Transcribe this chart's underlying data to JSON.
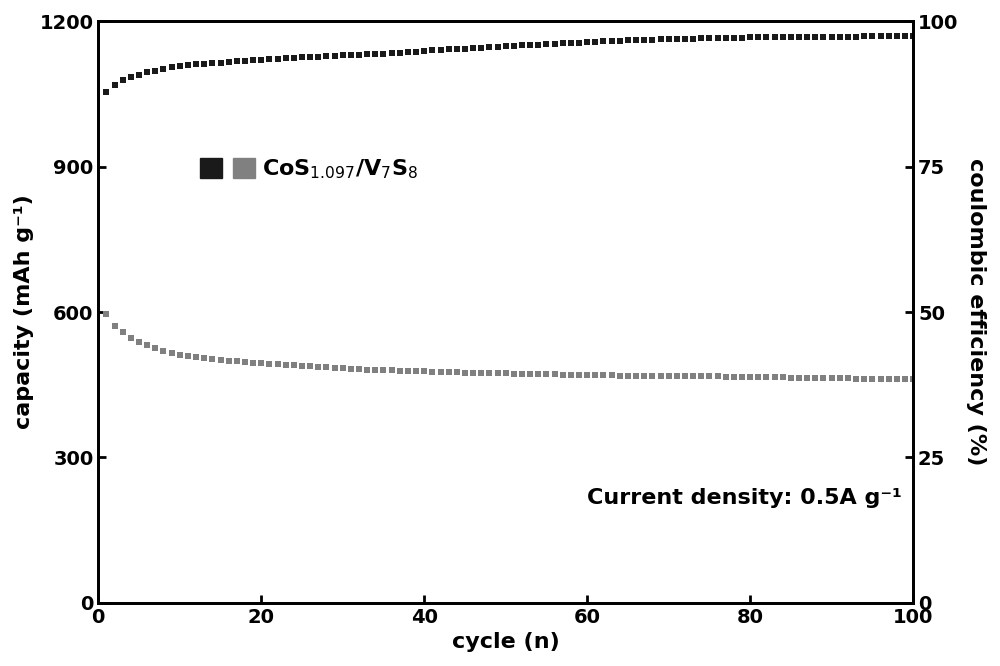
{
  "title": "",
  "xlabel": "cycle (n)",
  "ylabel_left": "capacity (mAh g⁻¹)",
  "ylabel_right": "coulombic efficiency (%)",
  "annotation": "Current density: 0.5A g⁻¹",
  "legend_label": "CoS$_{1.097}$/V$_7$S$_8$",
  "xlim": [
    0,
    100
  ],
  "ylim_left": [
    0,
    1200
  ],
  "ylim_right": [
    0,
    100
  ],
  "yticks_left": [
    0,
    300,
    600,
    900,
    1200
  ],
  "yticks_right": [
    0,
    25,
    50,
    75,
    100
  ],
  "xticks": [
    0,
    20,
    40,
    60,
    80,
    100
  ],
  "black_cycles": [
    1,
    2,
    3,
    4,
    5,
    6,
    7,
    8,
    9,
    10,
    11,
    12,
    13,
    14,
    15,
    16,
    17,
    18,
    19,
    20,
    21,
    22,
    23,
    24,
    25,
    26,
    27,
    28,
    29,
    30,
    31,
    32,
    33,
    34,
    35,
    36,
    37,
    38,
    39,
    40,
    41,
    42,
    43,
    44,
    45,
    46,
    47,
    48,
    49,
    50,
    51,
    52,
    53,
    54,
    55,
    56,
    57,
    58,
    59,
    60,
    61,
    62,
    63,
    64,
    65,
    66,
    67,
    68,
    69,
    70,
    71,
    72,
    73,
    74,
    75,
    76,
    77,
    78,
    79,
    80,
    81,
    82,
    83,
    84,
    85,
    86,
    87,
    88,
    89,
    90,
    91,
    92,
    93,
    94,
    95,
    96,
    97,
    98,
    99,
    100
  ],
  "black_values": [
    1055,
    1068,
    1078,
    1085,
    1090,
    1095,
    1098,
    1102,
    1105,
    1108,
    1110,
    1112,
    1113,
    1114,
    1115,
    1117,
    1118,
    1119,
    1120,
    1120,
    1122,
    1123,
    1124,
    1125,
    1126,
    1127,
    1127,
    1128,
    1129,
    1130,
    1130,
    1131,
    1132,
    1132,
    1133,
    1134,
    1135,
    1136,
    1137,
    1138,
    1140,
    1141,
    1142,
    1143,
    1144,
    1145,
    1146,
    1147,
    1148,
    1149,
    1150,
    1151,
    1152,
    1152,
    1153,
    1154,
    1155,
    1156,
    1156,
    1157,
    1158,
    1159,
    1160,
    1160,
    1161,
    1161,
    1162,
    1162,
    1163,
    1163,
    1163,
    1164,
    1164,
    1165,
    1165,
    1165,
    1166,
    1166,
    1166,
    1167,
    1167,
    1167,
    1167,
    1167,
    1167,
    1168,
    1168,
    1168,
    1168,
    1168,
    1168,
    1168,
    1168,
    1169,
    1169,
    1169,
    1169,
    1169,
    1169,
    1170
  ],
  "gray_cycles": [
    1,
    2,
    3,
    4,
    5,
    6,
    7,
    8,
    9,
    10,
    11,
    12,
    13,
    14,
    15,
    16,
    17,
    18,
    19,
    20,
    21,
    22,
    23,
    24,
    25,
    26,
    27,
    28,
    29,
    30,
    31,
    32,
    33,
    34,
    35,
    36,
    37,
    38,
    39,
    40,
    41,
    42,
    43,
    44,
    45,
    46,
    47,
    48,
    49,
    50,
    51,
    52,
    53,
    54,
    55,
    56,
    57,
    58,
    59,
    60,
    61,
    62,
    63,
    64,
    65,
    66,
    67,
    68,
    69,
    70,
    71,
    72,
    73,
    74,
    75,
    76,
    77,
    78,
    79,
    80,
    81,
    82,
    83,
    84,
    85,
    86,
    87,
    88,
    89,
    90,
    91,
    92,
    93,
    94,
    95,
    96,
    97,
    98,
    99,
    100
  ],
  "gray_values": [
    595,
    572,
    558,
    547,
    538,
    531,
    525,
    520,
    516,
    512,
    509,
    507,
    505,
    503,
    501,
    499,
    498,
    497,
    495,
    494,
    493,
    492,
    491,
    490,
    489,
    488,
    487,
    486,
    485,
    484,
    483,
    482,
    481,
    481,
    480,
    480,
    479,
    479,
    478,
    478,
    477,
    477,
    476,
    476,
    475,
    475,
    475,
    474,
    474,
    474,
    473,
    473,
    473,
    472,
    472,
    472,
    471,
    471,
    471,
    470,
    470,
    470,
    470,
    469,
    469,
    469,
    469,
    468,
    468,
    468,
    468,
    468,
    467,
    467,
    467,
    467,
    466,
    466,
    466,
    466,
    465,
    465,
    465,
    465,
    464,
    464,
    464,
    464,
    463,
    463,
    463,
    463,
    462,
    462,
    462,
    462,
    462,
    461,
    461,
    461
  ],
  "black_color": "#1a1a1a",
  "gray_color": "#808080",
  "marker": "s",
  "markersize": 4,
  "linewidth": 0,
  "figure_bg": "#ffffff",
  "axes_bg": "#ffffff",
  "label_font_size": 16,
  "tick_font_size": 14,
  "spine_linewidth": 2.0
}
